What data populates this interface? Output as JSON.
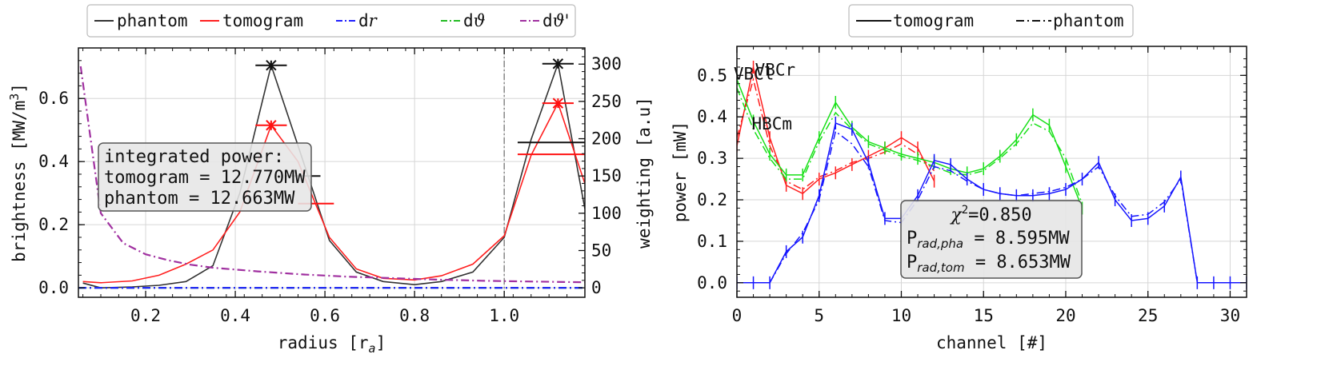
{
  "chart_data": [
    {
      "type": "line",
      "xlabel": "radius [r",
      "xlabel_sub": "a",
      "xlabel_end": "]",
      "ylabel": "brightness [MW/m",
      "ylabel_sup": "3",
      "ylabel_end": "]",
      "y2label": "weighting [a.u]",
      "xlim": [
        0.05,
        1.18
      ],
      "ylim": [
        -0.03,
        0.76
      ],
      "y2lim": [
        -12.7,
        321.7
      ],
      "xticks": [
        0.2,
        0.4,
        0.6,
        0.8,
        1.0
      ],
      "yticks": [
        0.0,
        0.2,
        0.4,
        0.6
      ],
      "y2ticks": [
        0,
        50,
        100,
        150,
        200,
        250,
        300
      ],
      "grid": true,
      "legend": {
        "placement": "top, outside",
        "entries": [
          {
            "label": "phantom",
            "color": "#333333",
            "style": "solid"
          },
          {
            "label": "tomogram",
            "color": "#ff2020",
            "style": "solid"
          },
          {
            "label": "d",
            "label_italic": "r",
            "color": "#1f1fff",
            "style": "dashdot"
          },
          {
            "label": "d",
            "label_italic": "ϑ",
            "color": "#22bb22",
            "style": "dashdot"
          },
          {
            "label": "d",
            "label_italic": "ϑ'",
            "color": "#a030a0",
            "style": "dashdot"
          }
        ]
      },
      "annotation": [
        "integrated power:",
        "tomogram = 12.770MW",
        "phantom = 12.663MW"
      ],
      "vline_x": 1.0,
      "series": [
        {
          "name": "phantom",
          "axis": "left",
          "color": "#333333",
          "x": [
            0.06,
            0.1,
            0.17,
            0.23,
            0.29,
            0.35,
            0.41,
            0.48,
            0.54,
            0.61,
            0.67,
            0.73,
            0.8,
            0.86,
            0.93,
            1.0,
            1.06,
            1.12,
            1.18
          ],
          "y": [
            0.015,
            0.0,
            0.003,
            0.008,
            0.02,
            0.07,
            0.3,
            0.705,
            0.45,
            0.15,
            0.05,
            0.02,
            0.01,
            0.02,
            0.05,
            0.16,
            0.47,
            0.71,
            0.25
          ]
        },
        {
          "name": "tomogram",
          "axis": "left",
          "color": "#ff2020",
          "x": [
            0.06,
            0.1,
            0.17,
            0.23,
            0.29,
            0.35,
            0.41,
            0.48,
            0.54,
            0.61,
            0.67,
            0.73,
            0.8,
            0.86,
            0.93,
            1.0,
            1.06,
            1.12,
            1.18
          ],
          "y": [
            0.02,
            0.016,
            0.022,
            0.04,
            0.075,
            0.12,
            0.24,
            0.515,
            0.4,
            0.16,
            0.06,
            0.03,
            0.025,
            0.038,
            0.075,
            0.165,
            0.42,
            0.585,
            0.33
          ]
        },
        {
          "name": "dϑ'",
          "axis": "right",
          "color": "#a030a0",
          "dash": "10,4,2,4",
          "x": [
            0.055,
            0.1,
            0.15,
            0.2,
            0.25,
            0.3,
            0.35,
            0.45,
            0.55,
            0.65,
            0.75,
            0.85,
            0.95,
            1.05,
            1.18
          ],
          "y": [
            297,
            100,
            60,
            45,
            37,
            31,
            27,
            22,
            18,
            15,
            13,
            11,
            9.5,
            8.5,
            7.5
          ]
        },
        {
          "name": "dϑ",
          "axis": "right",
          "color": "#22bb22",
          "dash": "10,4,2,4",
          "x": [
            0.05,
            1.18
          ],
          "y": [
            0,
            0
          ]
        },
        {
          "name": "dr",
          "axis": "right",
          "color": "#1f1fff",
          "dash": "10,4,2,4",
          "x": [
            0.05,
            1.18
          ],
          "y": [
            0,
            0
          ]
        }
      ],
      "markers": [
        {
          "x": 0.48,
          "y": 0.705,
          "axis": "left",
          "color": "#111111",
          "symbol": "x",
          "errx": 0.035
        },
        {
          "x": 0.48,
          "y": 0.515,
          "axis": "left",
          "color": "#ff1010",
          "symbol": "x",
          "errx": 0.035
        },
        {
          "x": 1.12,
          "y": 0.71,
          "axis": "left",
          "color": "#111111",
          "symbol": "x",
          "errx": 0.035
        },
        {
          "x": 1.12,
          "y": 0.585,
          "axis": "left",
          "color": "#ff1010",
          "symbol": "x",
          "errx": 0.035
        },
        {
          "x": 1.12,
          "y": 195,
          "axis": "right",
          "color": "#111111",
          "symbol": "hbar",
          "errx": 0.09
        },
        {
          "x": 1.12,
          "y": 179,
          "axis": "right",
          "color": "#ff1010",
          "symbol": "hbar",
          "errx": 0.09
        },
        {
          "x": 0.55,
          "y": 150,
          "axis": "right",
          "color": "#111111",
          "symbol": "hbar",
          "errx": 0.04
        },
        {
          "x": 0.58,
          "y": 113,
          "axis": "right",
          "color": "#ff1010",
          "symbol": "hbar",
          "errx": 0.04
        }
      ]
    },
    {
      "type": "line",
      "xlabel": "channel [#]",
      "ylabel": "power [mW]",
      "xlim": [
        0,
        31
      ],
      "ylim": [
        -0.035,
        0.57
      ],
      "xticks": [
        0,
        5,
        10,
        15,
        20,
        25,
        30
      ],
      "yticks": [
        0.0,
        0.1,
        0.2,
        0.3,
        0.4,
        0.5
      ],
      "grid": true,
      "legend": {
        "placement": "top, outside",
        "entries": [
          {
            "label": "tomogram",
            "color": "#111111",
            "style": "solid"
          },
          {
            "label": "phantom",
            "color": "#111111",
            "style": "dashdot"
          }
        ]
      },
      "annotation": {
        "chi": "χ",
        "chi_value": "=0.850",
        "chi_sup": "2",
        "p_pha": "P",
        "p_pha_sub": "rad,pha",
        "p_pha_value": " = 8.595MW",
        "p_tom": "P",
        "p_tom_sub": "rad,tom",
        "p_tom_value": " = 8.653MW"
      },
      "labels": [
        {
          "text": "VBCl",
          "x": -0.2,
          "y": 0.49,
          "color": "#ff1010"
        },
        {
          "text": "VBCr",
          "x": 1.1,
          "y": 0.5,
          "color": "#18e018"
        },
        {
          "text": "HBCm",
          "x": 0.9,
          "y": 0.37,
          "color": "#1515ff"
        }
      ],
      "series": [
        {
          "name": "VBCl tomogram",
          "color": "#ff2020",
          "dash": "",
          "x": [
            0,
            1,
            2,
            3,
            4,
            5,
            6,
            7,
            8,
            9,
            10,
            11,
            12
          ],
          "y": [
            0.33,
            0.52,
            0.35,
            0.235,
            0.215,
            0.25,
            0.265,
            0.285,
            0.305,
            0.325,
            0.35,
            0.325,
            0.245
          ]
        },
        {
          "name": "VBCl phantom",
          "color": "#ff2020",
          "dash": "10,4,2,4",
          "x": [
            0,
            1,
            2,
            3,
            4,
            5,
            6,
            7,
            8,
            9,
            10,
            11,
            12
          ],
          "y": [
            0.35,
            0.49,
            0.33,
            0.245,
            0.225,
            0.255,
            0.27,
            0.29,
            0.3,
            0.315,
            0.335,
            0.31,
            0.27
          ]
        },
        {
          "name": "VBCr tomogram",
          "color": "#18e018",
          "dash": "",
          "x": [
            0,
            1,
            2,
            3,
            4,
            5,
            6,
            7,
            8,
            9,
            10,
            11,
            12,
            13,
            14,
            15,
            16,
            17,
            18,
            19,
            20,
            21
          ],
          "y": [
            0.49,
            0.39,
            0.31,
            0.26,
            0.26,
            0.35,
            0.435,
            0.375,
            0.34,
            0.325,
            0.31,
            0.3,
            0.29,
            0.275,
            0.265,
            0.275,
            0.305,
            0.345,
            0.405,
            0.38,
            0.28,
            0.18
          ]
        },
        {
          "name": "VBCr phantom",
          "color": "#18e018",
          "dash": "10,4,2,4",
          "x": [
            0,
            1,
            2,
            3,
            4,
            5,
            6,
            7,
            8,
            9,
            10,
            11,
            12,
            13,
            14,
            15,
            16,
            17,
            18,
            19,
            20,
            21
          ],
          "y": [
            0.47,
            0.37,
            0.3,
            0.25,
            0.25,
            0.34,
            0.41,
            0.37,
            0.335,
            0.32,
            0.305,
            0.295,
            0.28,
            0.265,
            0.26,
            0.27,
            0.3,
            0.335,
            0.385,
            0.365,
            0.3,
            0.19
          ]
        },
        {
          "name": "HBCm tomogram",
          "color": "#1515ff",
          "dash": "",
          "x": [
            0,
            1,
            2,
            3,
            4,
            5,
            6,
            7,
            8,
            9,
            10,
            11,
            12,
            13,
            14,
            15,
            16,
            17,
            18,
            19,
            20,
            21,
            22,
            23,
            24,
            25,
            26,
            27,
            28,
            29,
            30,
            31
          ],
          "y": [
            0,
            0,
            0,
            0.075,
            0.11,
            0.21,
            0.385,
            0.37,
            0.29,
            0.155,
            0.155,
            0.21,
            0.295,
            0.285,
            0.25,
            0.225,
            0.215,
            0.21,
            0.21,
            0.215,
            0.225,
            0.25,
            0.29,
            0.2,
            0.15,
            0.155,
            0.185,
            0.255,
            0,
            0,
            0,
            0
          ]
        },
        {
          "name": "HBCm phantom",
          "color": "#1515ff",
          "dash": "10,4,2,4",
          "x": [
            0,
            1,
            2,
            3,
            4,
            5,
            6,
            7,
            8,
            9,
            10,
            11,
            12,
            13,
            14,
            15,
            16,
            17,
            18,
            19,
            20,
            21,
            22,
            23,
            24,
            25,
            26,
            27,
            28,
            29,
            30,
            31
          ],
          "y": [
            0,
            0,
            0,
            0.07,
            0.12,
            0.2,
            0.365,
            0.335,
            0.28,
            0.15,
            0.145,
            0.2,
            0.28,
            0.27,
            0.245,
            0.225,
            0.215,
            0.21,
            0.215,
            0.22,
            0.23,
            0.25,
            0.28,
            0.21,
            0.16,
            0.165,
            0.195,
            0.25,
            0,
            0,
            0,
            0
          ]
        }
      ]
    }
  ]
}
